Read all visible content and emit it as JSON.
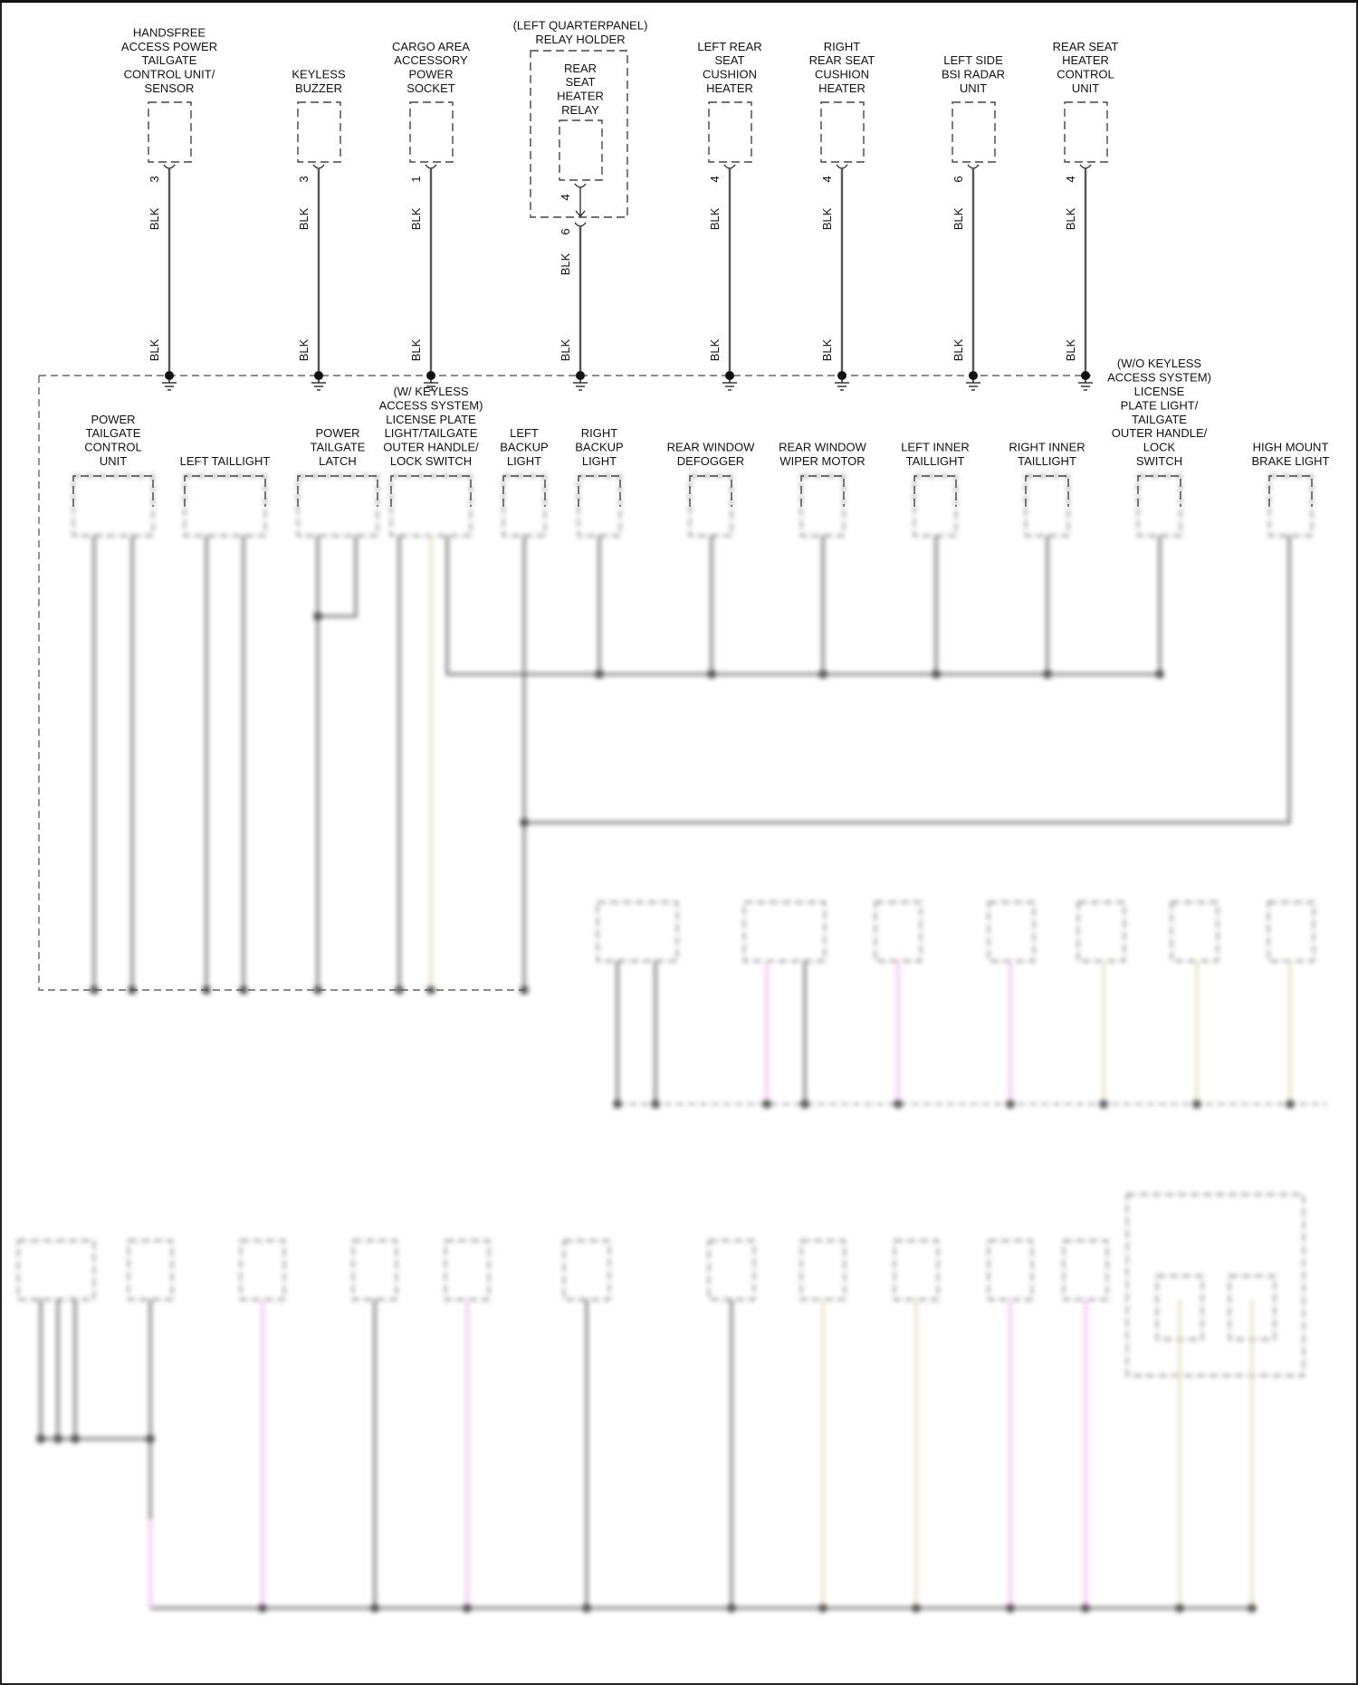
{
  "diagram": {
    "wire_color_code": "BLK",
    "colors": {
      "wire": "#555555",
      "pink_wire": "#f2a6ef",
      "tan_wire": "#d9d5a6",
      "line": "#444444"
    },
    "top_components": [
      {
        "label": [
          "HANDSFREE",
          "ACCESS POWER",
          "TAILGATE",
          "CONTROL UNIT/",
          "SENSOR"
        ],
        "pin": "3",
        "wire_top": "BLK",
        "wire_bottom": "BLK"
      },
      {
        "label": [
          "KEYLESS",
          "BUZZER"
        ],
        "pin": "3",
        "wire_top": "BLK",
        "wire_bottom": "BLK"
      },
      {
        "label": [
          "CARGO AREA",
          "ACCESSORY",
          "POWER",
          "SOCKET"
        ],
        "pin": "1",
        "wire_top": "BLK",
        "wire_bottom": "BLK"
      },
      {
        "label": [
          "LEFT REAR",
          "SEAT",
          "CUSHION",
          "HEATER"
        ],
        "pin": "4",
        "wire_top": "BLK",
        "wire_bottom": "BLK"
      },
      {
        "label": [
          "RIGHT",
          "REAR SEAT",
          "CUSHION",
          "HEATER"
        ],
        "pin": "4",
        "wire_top": "BLK",
        "wire_bottom": "BLK"
      },
      {
        "label": [
          "LEFT SIDE",
          "BSI RADAR",
          "UNIT"
        ],
        "pin": "6",
        "wire_top": "BLK",
        "wire_bottom": "BLK"
      },
      {
        "label": [
          "REAR SEAT",
          "HEATER",
          "CONTROL",
          "UNIT"
        ],
        "pin": "4",
        "wire_top": "BLK",
        "wire_bottom": "BLK"
      }
    ],
    "relay_holder": {
      "label": [
        "(LEFT QUARTERPANEL)",
        "RELAY HOLDER"
      ],
      "relay_label": [
        "REAR",
        "SEAT",
        "HEATER",
        "RELAY"
      ],
      "relay_pin": "4",
      "holder_pin": "6",
      "wire_top": "BLK",
      "wire_bottom": "BLK"
    },
    "second_row_components": [
      {
        "label": [
          "POWER",
          "TAILGATE",
          "CONTROL",
          "UNIT"
        ]
      },
      {
        "label": [
          "LEFT TAILLIGHT"
        ]
      },
      {
        "label": [
          "POWER",
          "TAILGATE",
          "LATCH"
        ]
      },
      {
        "label": [
          "(W/ KEYLESS",
          "ACCESS SYSTEM)",
          "LICENSE PLATE",
          "LIGHT/TAILGATE",
          "OUTER HANDLE/",
          "LOCK SWITCH"
        ]
      },
      {
        "label": [
          "LEFT",
          "BACKUP",
          "LIGHT"
        ]
      },
      {
        "label": [
          "RIGHT",
          "BACKUP",
          "LIGHT"
        ]
      },
      {
        "label": [
          "REAR WINDOW",
          "DEFOGGER"
        ]
      },
      {
        "label": [
          "REAR WINDOW",
          "WIPER MOTOR"
        ]
      },
      {
        "label": [
          "LEFT INNER",
          "TAILLIGHT"
        ]
      },
      {
        "label": [
          "RIGHT INNER",
          "TAILLIGHT"
        ]
      },
      {
        "label": [
          "(W/O KEYLESS",
          "ACCESS SYSTEM)",
          "LICENSE",
          "PLATE LIGHT/",
          "TAILGATE",
          "OUTER HANDLE/",
          "LOCK",
          "SWITCH"
        ]
      },
      {
        "label": [
          "HIGH MOUNT",
          "BRAKE LIGHT"
        ]
      }
    ]
  }
}
